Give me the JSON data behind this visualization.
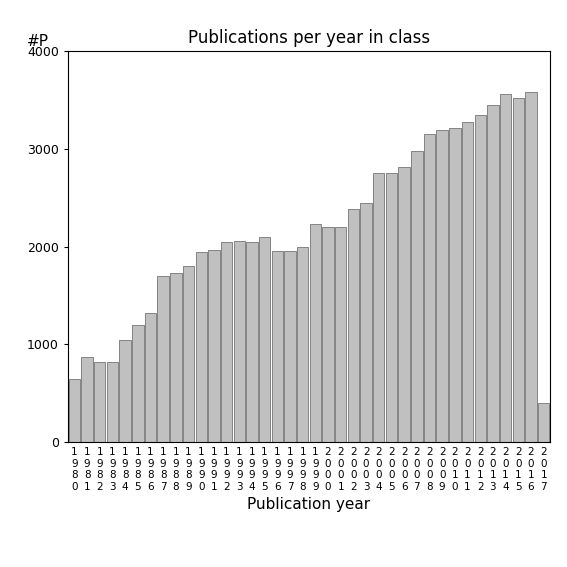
{
  "title": "Publications per year in class",
  "xlabel": "Publication year",
  "ylabel": "#P",
  "ylim": [
    0,
    4000
  ],
  "yticks": [
    0,
    1000,
    2000,
    3000,
    4000
  ],
  "years": [
    "1980",
    "1981",
    "1982",
    "1983",
    "1984",
    "1985",
    "1986",
    "1987",
    "1988",
    "1989",
    "1990",
    "1991",
    "1992",
    "1993",
    "1994",
    "1995",
    "1996",
    "1997",
    "1998",
    "1999",
    "2000",
    "2001",
    "2002",
    "2003",
    "2004",
    "2005",
    "2006",
    "2007",
    "2008",
    "2009",
    "2010",
    "2011",
    "2012",
    "2013",
    "2014",
    "2015",
    "2016",
    "2017"
  ],
  "values": [
    650,
    870,
    820,
    820,
    1050,
    1200,
    1320,
    1700,
    1730,
    1800,
    1950,
    1970,
    2050,
    2060,
    2050,
    2100,
    1960,
    1960,
    2000,
    2230,
    2200,
    2200,
    2380,
    2450,
    2750,
    2750,
    2810,
    2980,
    3150,
    3190,
    3210,
    3270,
    3350,
    3450,
    3560,
    3520,
    3580,
    400
  ],
  "bar_color": "#c0c0c0",
  "bar_edgecolor": "#606060",
  "background_color": "#ffffff",
  "tick_label_fontsize": 7.5,
  "ytick_fontsize": 9,
  "axis_label_fontsize": 11,
  "title_fontsize": 12
}
